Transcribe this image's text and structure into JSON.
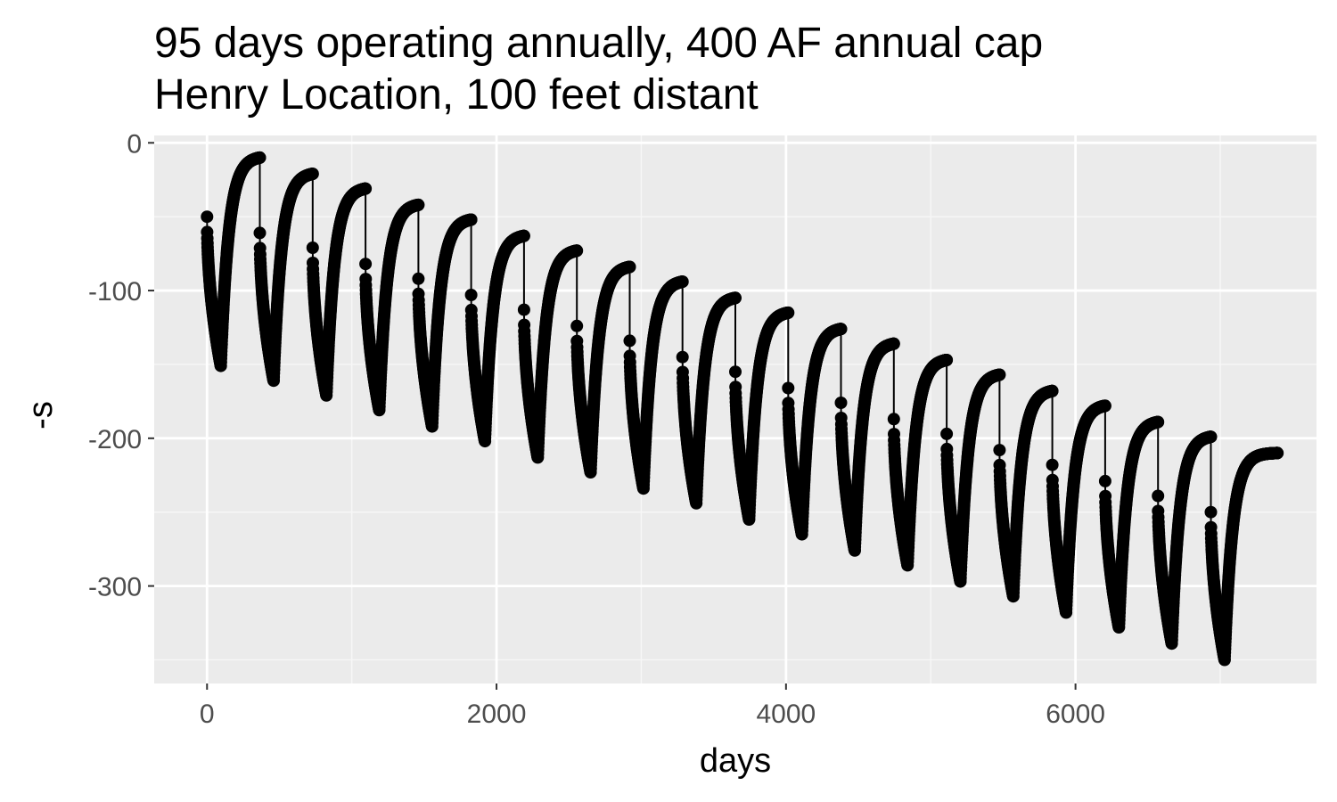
{
  "colors": {
    "panel_background": "#ebebeb",
    "grid_major": "#ffffff",
    "grid_minor": "#f7f7f7",
    "series": "#000000",
    "tick_text": "#4d4d4d",
    "tick_mark": "#333333"
  },
  "chart_data": {
    "type": "line",
    "title": [
      "95 days operating annually, 400 AF annual cap",
      "Henry Location, 100 feet distant"
    ],
    "xlabel": "days",
    "ylabel": "-s",
    "xlim": [
      -365,
      7665
    ],
    "ylim": [
      -366,
      5
    ],
    "xticks": [
      0,
      2000,
      4000,
      6000
    ],
    "xtick_labels": [
      "0",
      "2000",
      "4000",
      "6000"
    ],
    "yticks": [
      0,
      -100,
      -200,
      -300
    ],
    "ytick_labels": [
      "0",
      "-100",
      "-200",
      "-300"
    ],
    "grid": true,
    "legend": "none",
    "markers": true,
    "series": [
      {
        "cycles": [
          {
            "start": 0,
            "on_days": 95,
            "off_days": 270,
            "s_start": -50,
            "s_on_end": -151,
            "s_off_end": -10
          },
          {
            "start": 365,
            "on_days": 95,
            "off_days": 270,
            "s_start": -61,
            "s_on_end": -161,
            "s_off_end": -21
          },
          {
            "start": 730,
            "on_days": 95,
            "off_days": 270,
            "s_start": -71,
            "s_on_end": -171,
            "s_off_end": -31
          },
          {
            "start": 1095,
            "on_days": 95,
            "off_days": 270,
            "s_start": -82,
            "s_on_end": -181,
            "s_off_end": -42
          },
          {
            "start": 1460,
            "on_days": 95,
            "off_days": 270,
            "s_start": -92,
            "s_on_end": -192,
            "s_off_end": -52
          },
          {
            "start": 1825,
            "on_days": 95,
            "off_days": 270,
            "s_start": -103,
            "s_on_end": -202,
            "s_off_end": -63
          },
          {
            "start": 2190,
            "on_days": 95,
            "off_days": 270,
            "s_start": -113,
            "s_on_end": -213,
            "s_off_end": -73
          },
          {
            "start": 2555,
            "on_days": 95,
            "off_days": 270,
            "s_start": -124,
            "s_on_end": -223,
            "s_off_end": -84
          },
          {
            "start": 2920,
            "on_days": 95,
            "off_days": 270,
            "s_start": -134,
            "s_on_end": -234,
            "s_off_end": -94
          },
          {
            "start": 3285,
            "on_days": 95,
            "off_days": 270,
            "s_start": -145,
            "s_on_end": -244,
            "s_off_end": -105
          },
          {
            "start": 3650,
            "on_days": 95,
            "off_days": 270,
            "s_start": -155,
            "s_on_end": -255,
            "s_off_end": -115
          },
          {
            "start": 4015,
            "on_days": 95,
            "off_days": 270,
            "s_start": -166,
            "s_on_end": -265,
            "s_off_end": -126
          },
          {
            "start": 4380,
            "on_days": 95,
            "off_days": 270,
            "s_start": -176,
            "s_on_end": -276,
            "s_off_end": -136
          },
          {
            "start": 4745,
            "on_days": 95,
            "off_days": 270,
            "s_start": -187,
            "s_on_end": -286,
            "s_off_end": -147
          },
          {
            "start": 5110,
            "on_days": 95,
            "off_days": 270,
            "s_start": -197,
            "s_on_end": -297,
            "s_off_end": -157
          },
          {
            "start": 5475,
            "on_days": 95,
            "off_days": 270,
            "s_start": -208,
            "s_on_end": -307,
            "s_off_end": -168
          },
          {
            "start": 5840,
            "on_days": 95,
            "off_days": 270,
            "s_start": -218,
            "s_on_end": -318,
            "s_off_end": -178
          },
          {
            "start": 6205,
            "on_days": 95,
            "off_days": 270,
            "s_start": -229,
            "s_on_end": -328,
            "s_off_end": -189
          },
          {
            "start": 6570,
            "on_days": 95,
            "off_days": 270,
            "s_start": -239,
            "s_on_end": -339,
            "s_off_end": -199
          },
          {
            "start": 6935,
            "on_days": 95,
            "off_days": 365,
            "s_start": -250,
            "s_on_end": -350,
            "s_off_end": -210
          }
        ]
      }
    ]
  }
}
